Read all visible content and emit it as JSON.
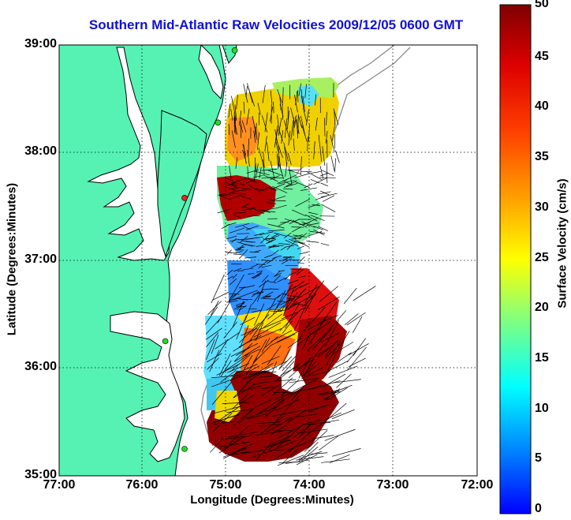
{
  "title": "Southern Mid-Atlantic Raw Velocities 2009/12/05 0600 GMT",
  "xlabel": "Longitude (Degrees:Minutes)",
  "ylabel": "Latitude (Degrees:Minutes)",
  "colorbar_label": "Surface Velocity (cm/s)",
  "x_ticks": [
    "77:00",
    "76:00",
    "75:00",
    "74:00",
    "73:00",
    "72:00"
  ],
  "y_ticks": [
    "39:00",
    "38:00",
    "37:00",
    "36:00",
    "35:00"
  ],
  "colorbar_ticks": [
    "50",
    "45",
    "40",
    "35",
    "30",
    "25",
    "20",
    "15",
    "10",
    "5",
    "0"
  ],
  "chart_data": {
    "type": "heatmap",
    "xlim": [
      -77,
      -72
    ],
    "ylim": [
      35,
      39
    ],
    "colorbar_range": [
      0,
      50
    ],
    "grid": true,
    "colors": {
      "land": "#55f2b4",
      "coast": "#000000",
      "station": "#22dd22",
      "station_alt": "#ee2222"
    },
    "stations": [
      {
        "lon": -74.9,
        "lat": 38.95,
        "color": "station"
      },
      {
        "lon": -75.1,
        "lat": 38.28,
        "color": "station"
      },
      {
        "lon": -75.5,
        "lat": 37.58,
        "color": "station_alt"
      },
      {
        "lon": -75.73,
        "lat": 36.25,
        "color": "station"
      },
      {
        "lon": -75.5,
        "lat": 35.25,
        "color": "station"
      }
    ]
  }
}
